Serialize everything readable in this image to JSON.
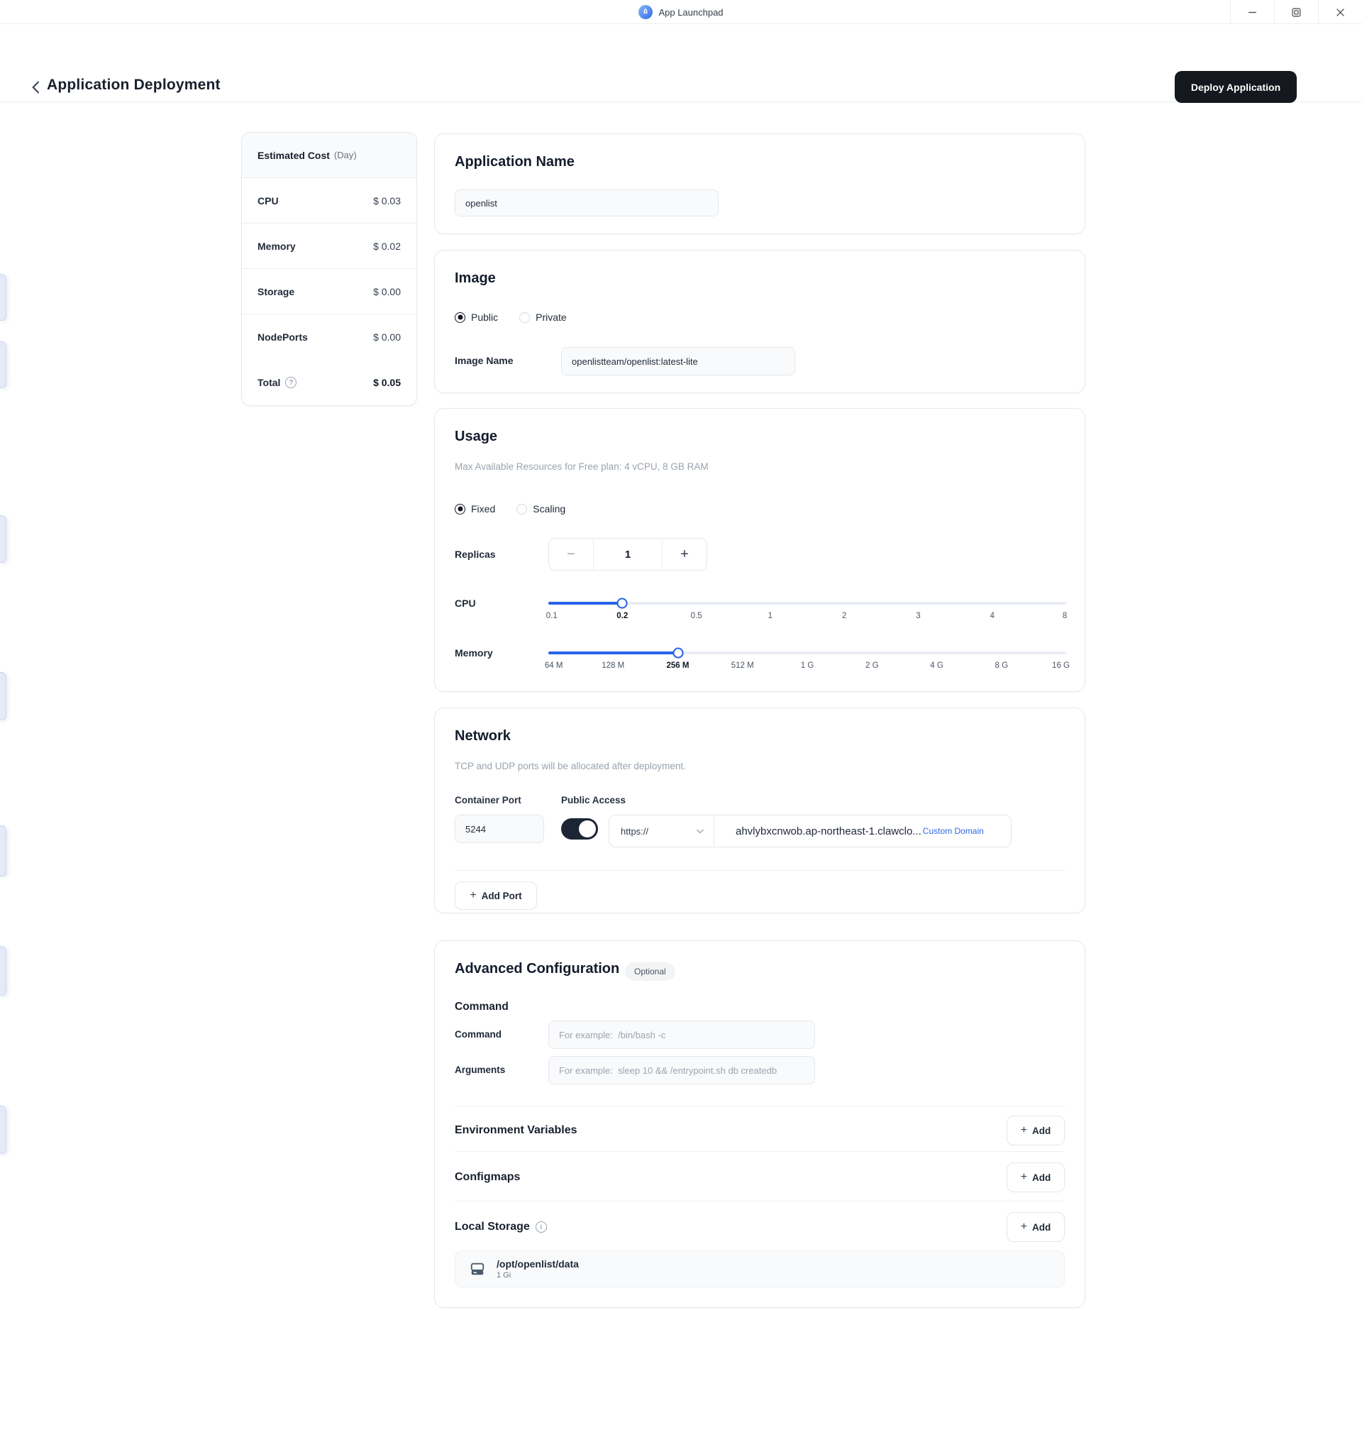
{
  "titlebar": {
    "app_name": "App Launchpad"
  },
  "header": {
    "title": "Application Deployment",
    "deploy_label": "Deploy Application"
  },
  "cost": {
    "title": "Estimated Cost",
    "unit": "(Day)",
    "rows": [
      {
        "label": "CPU",
        "value": "$ 0.03"
      },
      {
        "label": "Memory",
        "value": "$ 0.02"
      },
      {
        "label": "Storage",
        "value": "$ 0.00"
      },
      {
        "label": "NodePorts",
        "value": "$ 0.00"
      }
    ],
    "total_label": "Total",
    "total_value": "$ 0.05"
  },
  "sections": {
    "app_name": {
      "title": "Application Name",
      "value": "openlist"
    },
    "image": {
      "title": "Image",
      "public_label": "Public",
      "private_label": "Private",
      "name_label": "Image Name",
      "name_value": "openlistteam/openlist:latest-lite"
    },
    "usage": {
      "title": "Usage",
      "subtitle": "Max Available Resources for Free plan: 4 vCPU, 8 GB RAM",
      "fixed_label": "Fixed",
      "scaling_label": "Scaling",
      "replicas_label": "Replicas",
      "replicas_value": "1",
      "minus_label": "−",
      "plus_label": "+",
      "cpu_label": "CPU",
      "cpu_ticks": [
        "0.1",
        "0.2",
        "0.5",
        "1",
        "2",
        "3",
        "4",
        "8"
      ],
      "cpu_value": "0.2",
      "memory_label": "Memory",
      "memory_ticks": [
        "64 M",
        "128 M",
        "256 M",
        "512 M",
        "1 G",
        "2 G",
        "4 G",
        "8 G",
        "16 G"
      ],
      "memory_value": "256 M"
    },
    "network": {
      "title": "Network",
      "subtitle": "TCP and UDP ports will be allocated after deployment.",
      "container_port_label": "Container Port",
      "public_access_label": "Public Access",
      "port_value": "5244",
      "protocol_value": "https://",
      "domain_value": "ahvlybxcnwob.ap-northeast-1.clawclo...",
      "custom_domain_label": "Custom Domain",
      "add_port_label": "Add Port"
    },
    "advanced": {
      "title": "Advanced Configuration",
      "optional_badge": "Optional",
      "command_heading": "Command",
      "command_label": "Command",
      "command_placeholder": "For example:  /bin/bash -c",
      "arguments_label": "Arguments",
      "arguments_placeholder": "For example:  sleep 10 && /entrypoint.sh db createdb",
      "env_label": "Environment Variables",
      "configmaps_label": "Configmaps",
      "local_storage_label": "Local Storage",
      "add_label": "Add",
      "storage_item": {
        "path": "/opt/openlist/data",
        "size": "1 Gi"
      }
    }
  },
  "colors": {
    "accent_blue": "#2563eb",
    "toggle_on": "#1c2534",
    "deploy_bg": "#15181e",
    "link_blue": "#2b6ce0"
  }
}
